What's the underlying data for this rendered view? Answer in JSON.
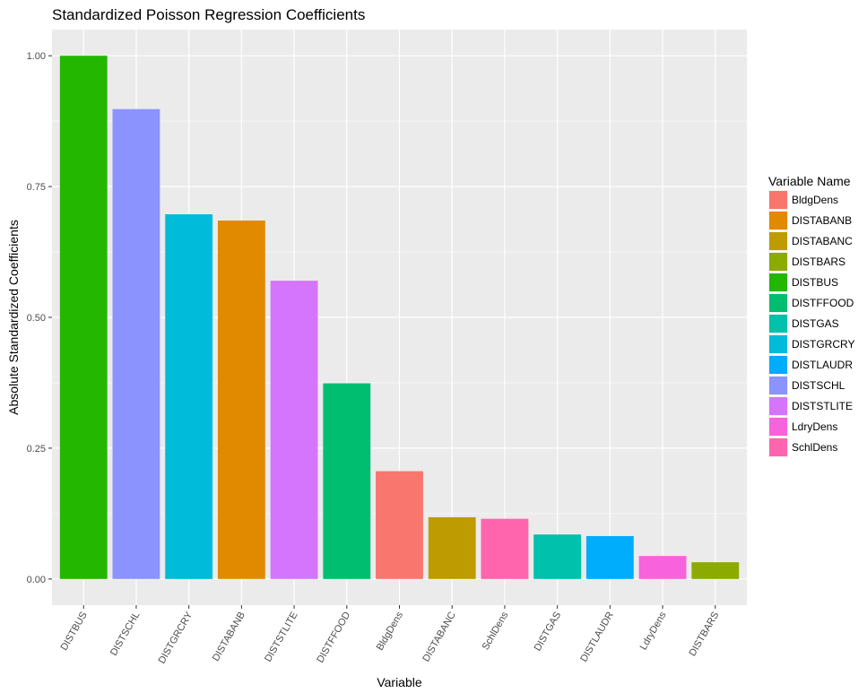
{
  "chart_data": {
    "type": "bar",
    "title": "Standardized Poisson Regression Coefficients",
    "xlabel": "Variable",
    "ylabel": "Absolute Standardized Coefficients",
    "ylim": [
      -0.05,
      1.05
    ],
    "yticks": [
      0.0,
      0.25,
      0.5,
      0.75,
      1.0
    ],
    "ytick_labels": [
      "0.00",
      "0.25",
      "0.50",
      "0.75",
      "1.00"
    ],
    "grid": true,
    "legend_position": "right",
    "legend_title": "Variable Name",
    "categories": [
      "DISTBUS",
      "DISTSCHL",
      "DISTGRCRY",
      "DISTABANB",
      "DISTSTLITE",
      "DISTFFOOD",
      "BldgDens",
      "DISTABANC",
      "SchlDens",
      "DISTGAS",
      "DISTLAUDR",
      "LdryDens",
      "DISTBARS"
    ],
    "values": [
      1.0,
      0.898,
      0.697,
      0.685,
      0.57,
      0.374,
      0.206,
      0.118,
      0.115,
      0.085,
      0.082,
      0.044,
      0.032
    ],
    "legend": [
      {
        "label": "BldgDens",
        "color": "#F8766D"
      },
      {
        "label": "DISTABANB",
        "color": "#E18A00"
      },
      {
        "label": "DISTABANC",
        "color": "#BE9C00"
      },
      {
        "label": "DISTBARS",
        "color": "#8CAB00"
      },
      {
        "label": "DISTBUS",
        "color": "#24B700"
      },
      {
        "label": "DISTFFOOD",
        "color": "#00BE70"
      },
      {
        "label": "DISTGAS",
        "color": "#00C1AB"
      },
      {
        "label": "DISTGRCRY",
        "color": "#00BBDA"
      },
      {
        "label": "DISTLAUDR",
        "color": "#00ACFC"
      },
      {
        "label": "DISTSCHL",
        "color": "#8B93FF"
      },
      {
        "label": "DISTSTLITE",
        "color": "#D575FE"
      },
      {
        "label": "LdryDens",
        "color": "#F962DD"
      },
      {
        "label": "SchlDens",
        "color": "#FF65AC"
      }
    ]
  }
}
